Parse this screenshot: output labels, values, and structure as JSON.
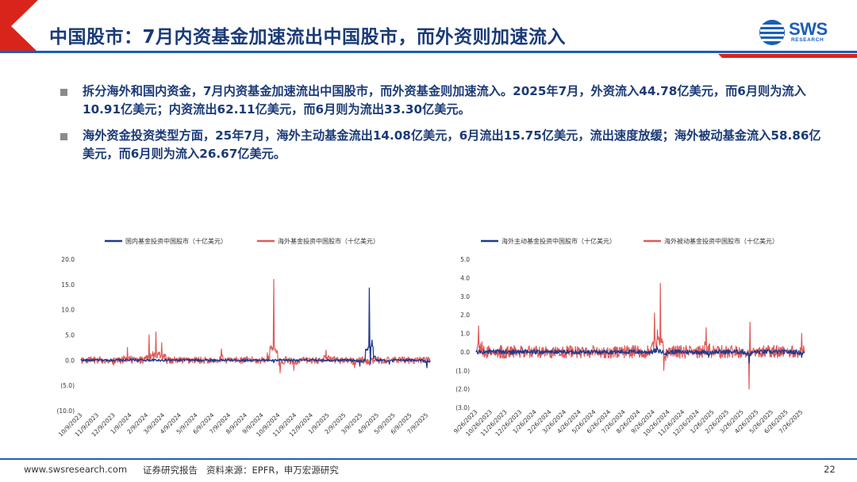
{
  "page": {
    "title": "中国股市：7月内资基金加速流出中国股市，而外资则加速流入",
    "logo_main": "SWS",
    "logo_sub": "RESEARCH",
    "colors": {
      "title": "#1a3a78",
      "brand_red": "#d9241c",
      "brand_blue": "#1a5eb8",
      "domestic_line": "#1f3a8c",
      "foreign_line": "#e05a5a"
    }
  },
  "bullets": [
    "拆分海外和国内资金，7月内资基金加速流出中国股市，而外资基金则加速流入。2025年7月，外资流入44.78亿美元，而6月则为流入10.91亿美元；内资流出62.11亿美元，而6月则为流出33.30亿美元。",
    "海外资金投资类型方面，25年7月，海外主动基金流出14.08亿美元，6月流出15.75亿美元，流出速度放缓；海外被动基金流入58.86亿美元，而6月则为流入26.67亿美元。"
  ],
  "footer": {
    "website": "www.swsresearch.com",
    "report_type": "证券研究报告",
    "source": "资料来源：EPFR，申万宏源研究",
    "page_number": "22"
  },
  "chart_data": [
    {
      "type": "line",
      "series": [
        {
          "name": "国内基金投资中国股市（十亿美元）",
          "color": "#1f3a8c",
          "key_points": [
            [
              "2023-10-09",
              0
            ],
            [
              "2024-01-15",
              0.3
            ],
            [
              "2024-06-01",
              0.2
            ],
            [
              "2024-10-08",
              -0.5
            ],
            [
              "2025-01-10",
              0.2
            ],
            [
              "2025-03-20",
              -1.2
            ],
            [
              "2025-04-07",
              14.3
            ],
            [
              "2025-04-09",
              -0.8
            ],
            [
              "2025-04-12",
              4.0
            ],
            [
              "2025-05-15",
              -0.8
            ],
            [
              "2025-07-25",
              -1.5
            ]
          ]
        },
        {
          "name": "海外基金投资中国股市（十亿美元）",
          "color": "#e05a5a",
          "key_points": [
            [
              "2023-10-09",
              0
            ],
            [
              "2023-12-10",
              -1.0
            ],
            [
              "2024-01-05",
              2.5
            ],
            [
              "2024-02-15",
              5.0
            ],
            [
              "2024-02-28",
              5.6
            ],
            [
              "2024-03-10",
              3.5
            ],
            [
              "2024-07-01",
              2.2
            ],
            [
              "2024-09-26",
              1.5
            ],
            [
              "2024-10-08",
              16.0
            ],
            [
              "2024-10-20",
              -2.5
            ],
            [
              "2024-11-15",
              -2.0
            ],
            [
              "2025-01-15",
              2.0
            ],
            [
              "2025-03-10",
              -1.5
            ],
            [
              "2025-04-07",
              -1.0
            ],
            [
              "2025-07-25",
              0.5
            ]
          ]
        }
      ],
      "x_tick_labels": [
        "10/9/2023",
        "11/9/2023",
        "12/9/2023",
        "1/9/2024",
        "2/9/2024",
        "3/9/2024",
        "4/9/2024",
        "5/9/2024",
        "6/9/2024",
        "7/9/2024",
        "8/9/2024",
        "9/9/2024",
        "10/9/2024",
        "11/9/2024",
        "12/9/2024",
        "1/9/2025",
        "2/9/2025",
        "3/9/2025",
        "4/9/2025",
        "5/9/2025",
        "6/9/2025",
        "7/9/2025"
      ],
      "y_tick_labels": [
        "(10.0)",
        "(5.0)",
        "0.0",
        "5.0",
        "10.0",
        "15.0",
        "20.0"
      ],
      "ylim": [
        -10,
        20
      ],
      "y_step": 5,
      "xlim": [
        "2023-10-09",
        "2025-07-31"
      ],
      "legend_position": "top"
    },
    {
      "type": "line",
      "series": [
        {
          "name": "海外主动基金投资中国股市（十亿美元）",
          "color": "#1f3a8c",
          "key_points": [
            [
              "2023-09-26",
              0
            ],
            [
              "2024-06-01",
              -0.1
            ],
            [
              "2024-10-01",
              0.3
            ],
            [
              "2024-10-20",
              -0.2
            ],
            [
              "2025-01-15",
              -0.3
            ],
            [
              "2025-04-08",
              -0.6
            ],
            [
              "2025-07-25",
              -0.3
            ]
          ]
        },
        {
          "name": "海外被动基金投资中国股市（十亿美元）",
          "color": "#e05a5a",
          "key_points": [
            [
              "2023-09-26",
              0
            ],
            [
              "2023-10-01",
              1.4
            ],
            [
              "2024-09-26",
              2.1
            ],
            [
              "2024-10-08",
              3.7
            ],
            [
              "2024-10-15",
              -1.0
            ],
            [
              "2025-01-10",
              1.3
            ],
            [
              "2025-04-08",
              -2.0
            ],
            [
              "2025-04-10",
              1.6
            ],
            [
              "2025-07-25",
              1.0
            ]
          ]
        }
      ],
      "x_tick_labels": [
        "9/26/2023",
        "10/26/2023",
        "11/26/2023",
        "12/26/2023",
        "1/26/2024",
        "2/26/2024",
        "3/26/2024",
        "4/26/2024",
        "5/26/2024",
        "6/26/2024",
        "7/26/2024",
        "8/26/2024",
        "9/26/2024",
        "10/26/2024",
        "11/26/2024",
        "12/26/2024",
        "1/26/2025",
        "2/26/2025",
        "3/26/2025",
        "4/26/2025",
        "5/26/2025",
        "6/26/2025",
        "7/26/2025"
      ],
      "y_tick_labels": [
        "(3.0)",
        "(2.0)",
        "(1.0)",
        "0.0",
        "1.0",
        "2.0",
        "3.0",
        "4.0",
        "5.0"
      ],
      "ylim": [
        -3,
        5
      ],
      "y_step": 1,
      "xlim": [
        "2023-09-26",
        "2025-07-31"
      ],
      "legend_position": "top"
    }
  ]
}
